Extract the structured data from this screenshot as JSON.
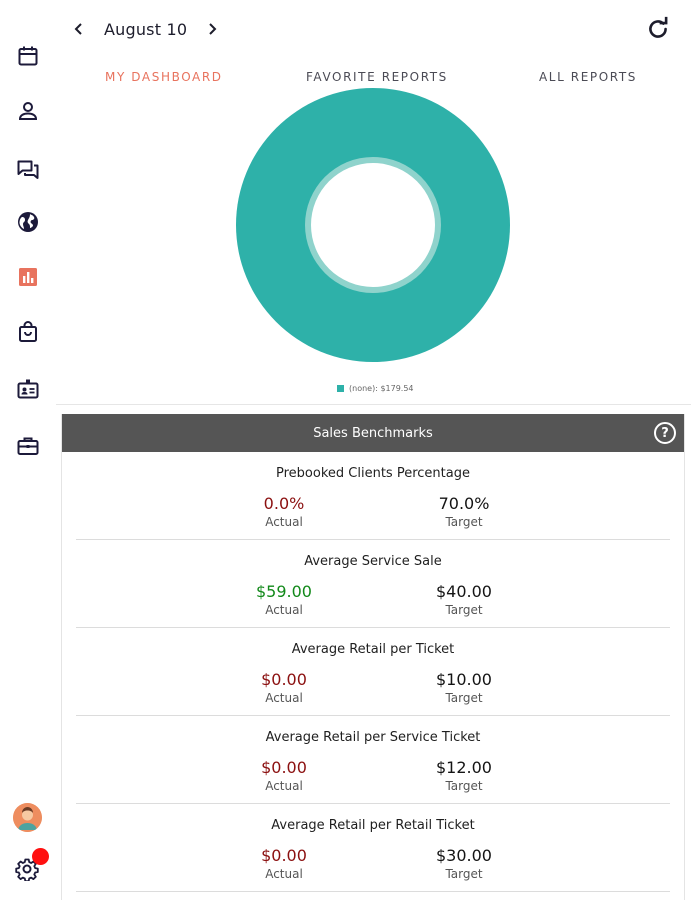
{
  "header": {
    "date": "August 10",
    "prev_icon": "chevron-left-icon",
    "next_icon": "chevron-right-icon",
    "refresh_icon": "refresh-icon"
  },
  "tabs": [
    {
      "label": "MY DASHBOARD",
      "active": true
    },
    {
      "label": "FAVORITE REPORTS",
      "active": false
    },
    {
      "label": "ALL REPORTS",
      "active": false
    }
  ],
  "sidebar": {
    "items": [
      {
        "icon": "calendar-icon"
      },
      {
        "icon": "person-icon"
      },
      {
        "icon": "chat-icon"
      },
      {
        "icon": "globe-icon"
      },
      {
        "icon": "bar-chart-icon",
        "active": true
      },
      {
        "icon": "shopping-bag-icon"
      },
      {
        "icon": "id-card-icon"
      },
      {
        "icon": "briefcase-icon"
      }
    ],
    "avatar": "avatar",
    "settings_icon": "gear-icon"
  },
  "chart_data": {
    "type": "pie",
    "donut": true,
    "slices": [
      {
        "label": "(none)",
        "value": 179.54,
        "color": "#2eb1a9"
      }
    ],
    "legend_text": "(none): $179.54",
    "legend_position": "bottom"
  },
  "benchmarks": {
    "title": "Sales Benchmarks",
    "help_label": "?",
    "metrics": [
      {
        "title": "Prebooked Clients Percentage",
        "actual": "0.0%",
        "actual_label": "Actual",
        "target": "70.0%",
        "target_label": "Target",
        "actual_status": "below"
      },
      {
        "title": "Average Service Sale",
        "actual": "$59.00",
        "actual_label": "Actual",
        "target": "$40.00",
        "target_label": "Target",
        "actual_status": "above"
      },
      {
        "title": "Average Retail per Ticket",
        "actual": "$0.00",
        "actual_label": "Actual",
        "target": "$10.00",
        "target_label": "Target",
        "actual_status": "below"
      },
      {
        "title": "Average Retail per Service Ticket",
        "actual": "$0.00",
        "actual_label": "Actual",
        "target": "$12.00",
        "target_label": "Target",
        "actual_status": "below"
      },
      {
        "title": "Average Retail per Retail Ticket",
        "actual": "$0.00",
        "actual_label": "Actual",
        "target": "$30.00",
        "target_label": "Target",
        "actual_status": "below"
      }
    ]
  },
  "colors": {
    "accent": "#e8735e",
    "teal": "#2eb1a9",
    "red": "#8b1010",
    "green": "#12891a",
    "header_gray": "#555555",
    "icon_navy": "#1c1a3a",
    "badge_red": "#ff1010"
  }
}
